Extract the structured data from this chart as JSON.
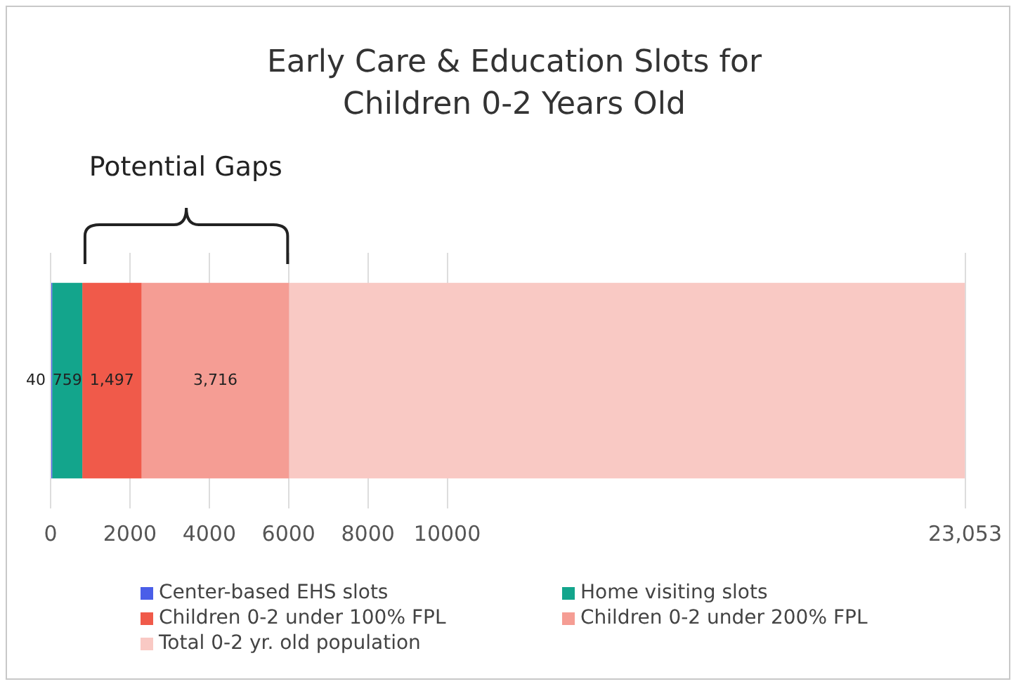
{
  "chart_data": {
    "type": "bar",
    "orientation": "horizontal",
    "stacked": true,
    "title": "Early Care & Education Slots for Children 0-2 Years Old",
    "categories": [
      null
    ],
    "series": [
      {
        "name": "Center-based EHS slots",
        "color": "#4a5ee8",
        "values": [
          40
        ],
        "value_labels": [
          "40"
        ]
      },
      {
        "name": "Home visiting slots",
        "color": "#13a58c",
        "values": [
          759
        ],
        "value_labels": [
          "759"
        ]
      },
      {
        "name": "Children 0-2 under 100% FPL",
        "color": "#f05a4a",
        "values": [
          1497
        ],
        "value_labels": [
          "1,497"
        ]
      },
      {
        "name": "Children 0-2 under 200% FPL",
        "color": "#f59d94",
        "values": [
          3716
        ],
        "value_labels": [
          "3,716"
        ]
      },
      {
        "name": "Total 0-2 yr. old population",
        "color": "#f9c9c4",
        "values": [
          17041
        ],
        "value_labels": [
          null
        ]
      }
    ],
    "xlim": [
      0,
      23053
    ],
    "xticks": [
      0,
      2000,
      4000,
      6000,
      8000,
      10000,
      {
        "value": 23053,
        "label": "23,053"
      }
    ],
    "annotations": [
      "Potential Gaps"
    ],
    "grid": "x",
    "legend": "bottom",
    "tick_labels": "x"
  }
}
